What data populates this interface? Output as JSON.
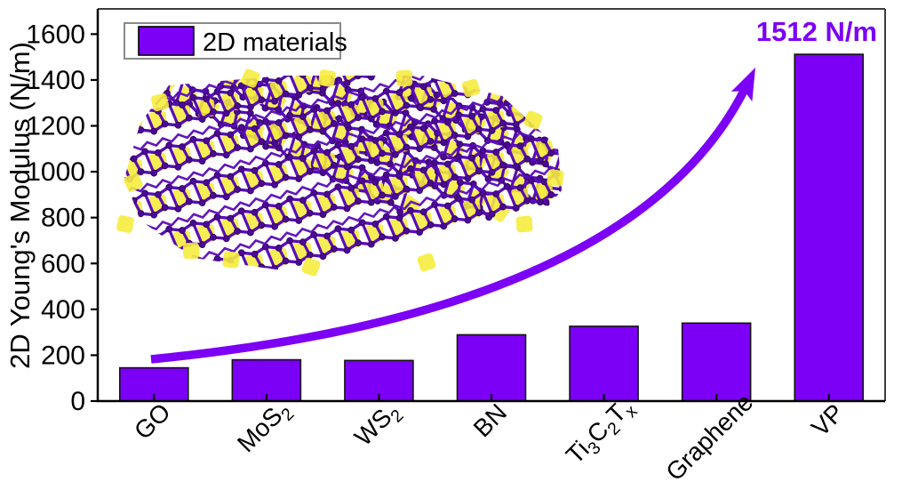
{
  "chart_data": {
    "type": "bar",
    "title": "",
    "categories": [
      "GO",
      "MoS₂",
      "WS₂",
      "BN",
      "Ti₃C₂Tₓ",
      "Graphene",
      "VP"
    ],
    "values": [
      145,
      180,
      177,
      289,
      326,
      340,
      1512
    ],
    "xlabel": "",
    "ylabel": "2D Young's Modulus (N/m)",
    "ylim": [
      0,
      1710
    ],
    "yticks": [
      0,
      200,
      400,
      600,
      800,
      1000,
      1200,
      1400,
      1600
    ],
    "grid": false,
    "legend": {
      "label": "2D materials",
      "position": "top-left"
    },
    "annotation": {
      "text": "1512 N/m",
      "target": "VP"
    },
    "bar_color": "#7C00F5",
    "arrow_color": "#7C00F5",
    "axis_color": "#000000",
    "text_color": "#000000"
  },
  "inset": {
    "description": "layered violet phosphorus crystal structure",
    "bond_color": "#5A0CB8",
    "atom_color": "#4B0898",
    "atom_edge_color": "#33055E",
    "polyhedra_color": "#F6EC3F"
  }
}
